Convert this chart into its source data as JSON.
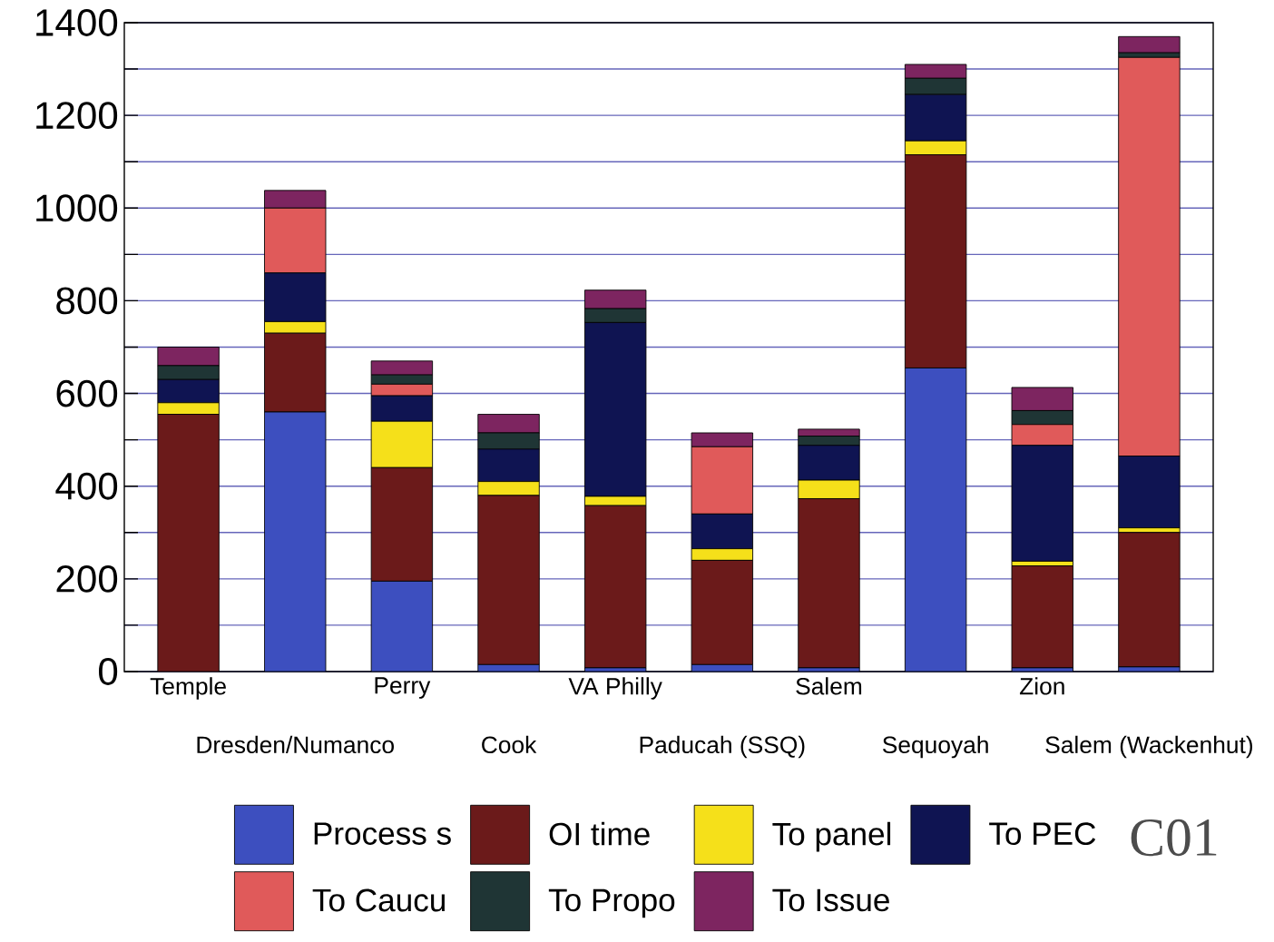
{
  "chart_data": {
    "type": "bar",
    "stacked": true,
    "grid": "y",
    "legend": "bottom",
    "categories": [
      "Temple",
      "Dresden/Numanco",
      "Perry",
      "Cook",
      "VA Philly",
      "Paducah (SSQ)",
      "Salem",
      "Sequoyah",
      "Zion",
      "Salem (Wackenhut)"
    ],
    "ylim": [
      0,
      1400
    ],
    "yticks": [
      0,
      {
        "value": 100,
        "label": null
      },
      200,
      {
        "value": 300,
        "label": null
      },
      400,
      {
        "value": 500,
        "label": null
      },
      600,
      {
        "value": 700,
        "label": null
      },
      800,
      {
        "value": 900,
        "label": null
      },
      1000,
      {
        "value": 1100,
        "label": null
      },
      1200,
      {
        "value": 1300,
        "label": null
      },
      1400
    ],
    "series": [
      {
        "name": "Process s",
        "color": "#3d4fbf",
        "values": [
          0,
          560,
          195,
          15,
          8,
          15,
          8,
          655,
          8,
          10
        ]
      },
      {
        "name": "OI time",
        "color": "#6b1a1a",
        "values": [
          555,
          170,
          245,
          365,
          350,
          225,
          365,
          460,
          220,
          290
        ]
      },
      {
        "name": "To panel",
        "color": "#f5e01a",
        "values": [
          25,
          25,
          100,
          30,
          20,
          25,
          40,
          30,
          10,
          10
        ]
      },
      {
        "name": "To PEC",
        "color": "#0f1452",
        "values": [
          50,
          105,
          55,
          70,
          375,
          75,
          75,
          100,
          250,
          155
        ]
      },
      {
        "name": "To Caucu",
        "color": "#e05a5a",
        "values": [
          0,
          140,
          25,
          0,
          0,
          145,
          0,
          0,
          45,
          860
        ]
      },
      {
        "name": "To Propo",
        "color": "#1f3535",
        "values": [
          30,
          0,
          20,
          35,
          30,
          0,
          20,
          35,
          30,
          10
        ]
      },
      {
        "name": "To Issue",
        "color": "#7d2560",
        "values": [
          40,
          38,
          30,
          40,
          40,
          30,
          15,
          30,
          50,
          35
        ]
      }
    ],
    "annotations": [
      "C01"
    ]
  }
}
